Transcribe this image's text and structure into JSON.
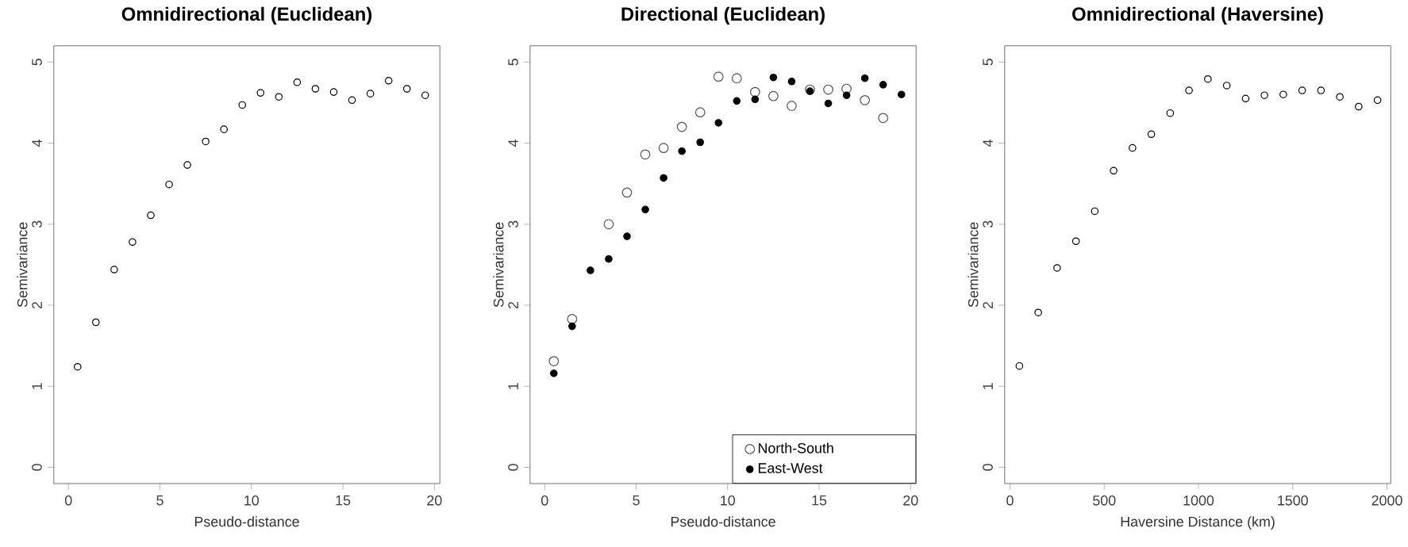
{
  "chart_data": [
    {
      "type": "scatter",
      "title": "Omnidirectional (Euclidean)",
      "xlabel": "Pseudo-distance",
      "ylabel": "Semivariance",
      "color": "#000000",
      "x": [
        0.5,
        1.5,
        2.5,
        3.5,
        4.5,
        5.5,
        6.5,
        7.5,
        8.5,
        9.5,
        10.5,
        11.5,
        12.5,
        13.5,
        14.5,
        15.5,
        16.5,
        17.5,
        18.5,
        19.5
      ],
      "values": [
        1.24,
        1.79,
        2.44,
        2.78,
        3.11,
        3.49,
        3.73,
        4.02,
        4.17,
        4.47,
        4.62,
        4.57,
        4.75,
        4.67,
        4.63,
        4.53,
        4.61,
        4.77,
        4.67,
        4.59
      ],
      "xlim": [
        -0.8,
        20.3
      ],
      "ylim": [
        -0.2,
        5.2
      ],
      "xticks": [
        0,
        5,
        10,
        15,
        20
      ],
      "yticks": [
        0,
        1,
        2,
        3,
        4,
        5
      ]
    },
    {
      "type": "scatter",
      "title": "Directional (Euclidean)",
      "xlabel": "Pseudo-distance",
      "ylabel": "Semivariance",
      "legend": "bottom right",
      "x": [
        0.5,
        1.5,
        2.5,
        3.5,
        4.5,
        5.5,
        6.5,
        7.5,
        8.5,
        9.5,
        10.5,
        11.5,
        12.5,
        13.5,
        14.5,
        15.5,
        16.5,
        17.5,
        18.5,
        19.5
      ],
      "series": [
        {
          "name": "North-South",
          "color": "#555555",
          "values": [
            1.31,
            1.83,
            null,
            3.0,
            3.39,
            3.86,
            3.94,
            4.2,
            4.38,
            4.82,
            4.8,
            4.63,
            4.58,
            4.46,
            4.66,
            4.66,
            4.67,
            4.53,
            4.31,
            null
          ]
        },
        {
          "name": "East-West",
          "color": "#000000",
          "values": [
            1.16,
            1.74,
            2.43,
            2.57,
            2.85,
            3.18,
            3.57,
            3.9,
            4.01,
            4.25,
            4.52,
            4.54,
            4.81,
            4.76,
            4.64,
            4.49,
            4.59,
            4.8,
            4.72,
            4.6
          ]
        }
      ],
      "xlim": [
        -0.8,
        20.3
      ],
      "ylim": [
        -0.2,
        5.2
      ],
      "xticks": [
        0,
        5,
        10,
        15,
        20
      ],
      "yticks": [
        0,
        1,
        2,
        3,
        4,
        5
      ]
    },
    {
      "type": "scatter",
      "title": "Omnidirectional (Haversine)",
      "xlabel": "Haversine Distance (km)",
      "ylabel": "Semivariance",
      "color": "#000000",
      "x": [
        50,
        150,
        250,
        350,
        450,
        550,
        650,
        750,
        850,
        950,
        1050,
        1150,
        1250,
        1350,
        1450,
        1550,
        1650,
        1750,
        1850,
        1950
      ],
      "values": [
        1.25,
        1.91,
        2.46,
        2.79,
        3.16,
        3.66,
        3.94,
        4.11,
        4.37,
        4.65,
        4.79,
        4.71,
        4.55,
        4.59,
        4.6,
        4.65,
        4.65,
        4.57,
        4.45,
        4.53
      ],
      "xlim": [
        -28,
        2020
      ],
      "ylim": [
        -0.2,
        5.2
      ],
      "xticks": [
        0,
        500,
        1000,
        1500,
        2000
      ],
      "yticks": [
        0,
        1,
        2,
        3,
        4,
        5
      ]
    }
  ]
}
